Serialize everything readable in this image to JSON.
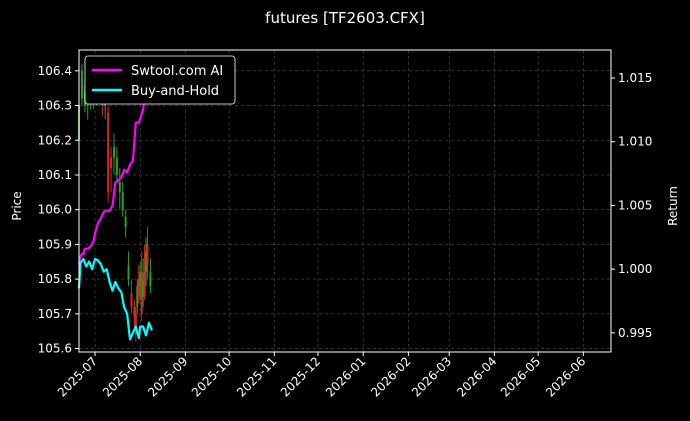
{
  "chart_data": {
    "type": "line",
    "title": "futures [TF2603.CFX]",
    "ylabel_left": "Price",
    "ylabel_right": "Return",
    "x_ticks": [
      "2025-07",
      "2025-08",
      "2025-09",
      "2025-10",
      "2025-11",
      "2025-12",
      "2026-01",
      "2026-02",
      "2026-03",
      "2026-04",
      "2026-05",
      "2026-06"
    ],
    "x_range": [
      "2025-06-20",
      "2026-06-20"
    ],
    "y_left": {
      "lim": [
        105.59,
        106.46
      ],
      "ticks": [
        "105.6",
        "105.7",
        "105.8",
        "105.9",
        "106.0",
        "106.1",
        "106.2",
        "106.3",
        "106.4"
      ]
    },
    "y_right": {
      "lim": [
        0.9935,
        1.0172
      ],
      "ticks": [
        "0.995",
        "1.000",
        "1.005",
        "1.010",
        "1.015"
      ]
    },
    "grid": true,
    "legend_placement": "top-left",
    "colors": {
      "strategy": "#ff00ff",
      "buyhold": "#00ffff",
      "candle_up": "#2ca02c",
      "candle_down": "#d62728",
      "grid": "#555555",
      "axis": "#ffffff"
    },
    "series": [
      {
        "name": "Swtool.com AI",
        "axis": "right",
        "x": [
          "2025-06-20",
          "2025-06-21",
          "2025-06-22",
          "2025-06-23",
          "2025-06-24",
          "2025-06-26",
          "2025-06-28",
          "2025-06-30",
          "2025-07-01",
          "2025-07-03",
          "2025-07-05",
          "2025-07-07",
          "2025-07-09",
          "2025-07-11",
          "2025-07-13",
          "2025-07-15",
          "2025-07-17",
          "2025-07-19",
          "2025-07-21",
          "2025-07-23",
          "2025-07-25",
          "2025-07-27",
          "2025-07-29",
          "2025-07-31",
          "2025-08-01",
          "2025-08-03",
          "2025-08-04",
          "2025-08-05",
          "2025-08-06",
          "2025-08-07"
        ],
        "values": [
          1.0005,
          1.001,
          1.0012,
          1.0012,
          1.0016,
          1.0016,
          1.0018,
          1.0022,
          1.0028,
          1.0036,
          1.004,
          1.0045,
          1.0046,
          1.0046,
          1.005,
          1.0068,
          1.007,
          1.0072,
          1.0078,
          1.0076,
          1.0082,
          1.0085,
          1.0115,
          1.0115,
          1.0118,
          1.0125,
          1.0135,
          1.0148,
          1.0152,
          1.016
        ]
      },
      {
        "name": "Buy-and-Hold",
        "axis": "right",
        "x": [
          "2025-06-20",
          "2025-06-21",
          "2025-06-23",
          "2025-06-25",
          "2025-06-27",
          "2025-06-29",
          "2025-07-01",
          "2025-07-03",
          "2025-07-05",
          "2025-07-07",
          "2025-07-09",
          "2025-07-11",
          "2025-07-13",
          "2025-07-15",
          "2025-07-17",
          "2025-07-19",
          "2025-07-21",
          "2025-07-23",
          "2025-07-25",
          "2025-07-27",
          "2025-07-29",
          "2025-07-31",
          "2025-08-01",
          "2025-08-03",
          "2025-08-05",
          "2025-08-07",
          "2025-08-09"
        ],
        "values": [
          0.9985,
          1.0005,
          1.0008,
          1.0002,
          1.0006,
          1.0,
          1.0008,
          1.0007,
          1.0004,
          0.9998,
          1.0,
          0.999,
          0.9983,
          0.999,
          0.9985,
          0.9982,
          0.997,
          0.9965,
          0.9945,
          0.995,
          0.9955,
          0.9946,
          0.9955,
          0.9955,
          0.9948,
          0.9958,
          0.9952
        ]
      }
    ],
    "candles": [
      {
        "x": "2025-06-20",
        "o": 106.2,
        "c": 106.3,
        "h": 106.33,
        "l": 106.18
      },
      {
        "x": "2025-06-22",
        "o": 106.32,
        "c": 106.4,
        "h": 106.42,
        "l": 106.3
      },
      {
        "x": "2025-06-24",
        "o": 106.3,
        "c": 106.34,
        "h": 106.36,
        "l": 106.28
      },
      {
        "x": "2025-06-26",
        "o": 106.3,
        "c": 106.34,
        "h": 106.36,
        "l": 106.26
      },
      {
        "x": "2025-06-28",
        "o": 106.31,
        "c": 106.34,
        "h": 106.35,
        "l": 106.29
      },
      {
        "x": "2025-06-30",
        "o": 106.38,
        "c": 106.32,
        "h": 106.4,
        "l": 106.29
      },
      {
        "x": "2025-07-02",
        "o": 106.32,
        "c": 106.36,
        "h": 106.38,
        "l": 106.3
      },
      {
        "x": "2025-07-04",
        "o": 106.37,
        "c": 106.33,
        "h": 106.39,
        "l": 106.31
      },
      {
        "x": "2025-07-06",
        "o": 106.35,
        "c": 106.3,
        "h": 106.37,
        "l": 106.27
      },
      {
        "x": "2025-07-08",
        "o": 106.3,
        "c": 106.32,
        "h": 106.34,
        "l": 106.26
      },
      {
        "x": "2025-07-10",
        "o": 106.28,
        "c": 106.05,
        "h": 106.3,
        "l": 106.02
      },
      {
        "x": "2025-07-12",
        "o": 106.15,
        "c": 106.12,
        "h": 106.18,
        "l": 106.05
      },
      {
        "x": "2025-07-14",
        "o": 106.15,
        "c": 106.18,
        "h": 106.22,
        "l": 106.1
      },
      {
        "x": "2025-07-16",
        "o": 106.1,
        "c": 106.15,
        "h": 106.18,
        "l": 106.08
      },
      {
        "x": "2025-07-18",
        "o": 106.05,
        "c": 106.08,
        "h": 106.12,
        "l": 106.0
      },
      {
        "x": "2025-07-20",
        "o": 106.0,
        "c": 106.05,
        "h": 106.08,
        "l": 105.98
      },
      {
        "x": "2025-07-22",
        "o": 105.95,
        "c": 105.98,
        "h": 106.0,
        "l": 105.92
      },
      {
        "x": "2025-07-24",
        "o": 105.8,
        "c": 105.84,
        "h": 105.88,
        "l": 105.78
      },
      {
        "x": "2025-07-26",
        "o": 105.76,
        "c": 105.72,
        "h": 105.8,
        "l": 105.7
      },
      {
        "x": "2025-07-28",
        "o": 105.72,
        "c": 105.69,
        "h": 105.74,
        "l": 105.66
      },
      {
        "x": "2025-07-29",
        "o": 105.7,
        "c": 105.64,
        "h": 105.72,
        "l": 105.62
      },
      {
        "x": "2025-07-30",
        "o": 105.72,
        "c": 105.78,
        "h": 105.8,
        "l": 105.7
      },
      {
        "x": "2025-07-31",
        "o": 105.8,
        "c": 105.75,
        "h": 105.84,
        "l": 105.73
      },
      {
        "x": "2025-08-01",
        "o": 105.78,
        "c": 105.82,
        "h": 105.85,
        "l": 105.74
      },
      {
        "x": "2025-08-02",
        "o": 105.82,
        "c": 105.7,
        "h": 105.88,
        "l": 105.68
      },
      {
        "x": "2025-08-03",
        "o": 105.75,
        "c": 105.8,
        "h": 105.86,
        "l": 105.72
      },
      {
        "x": "2025-08-04",
        "o": 105.82,
        "c": 105.75,
        "h": 105.9,
        "l": 105.74
      },
      {
        "x": "2025-08-05",
        "o": 105.82,
        "c": 105.88,
        "h": 105.92,
        "l": 105.78
      },
      {
        "x": "2025-08-06",
        "o": 105.9,
        "c": 105.84,
        "h": 105.95,
        "l": 105.8
      },
      {
        "x": "2025-08-08",
        "o": 105.78,
        "c": 105.82,
        "h": 105.86,
        "l": 105.76
      }
    ]
  }
}
